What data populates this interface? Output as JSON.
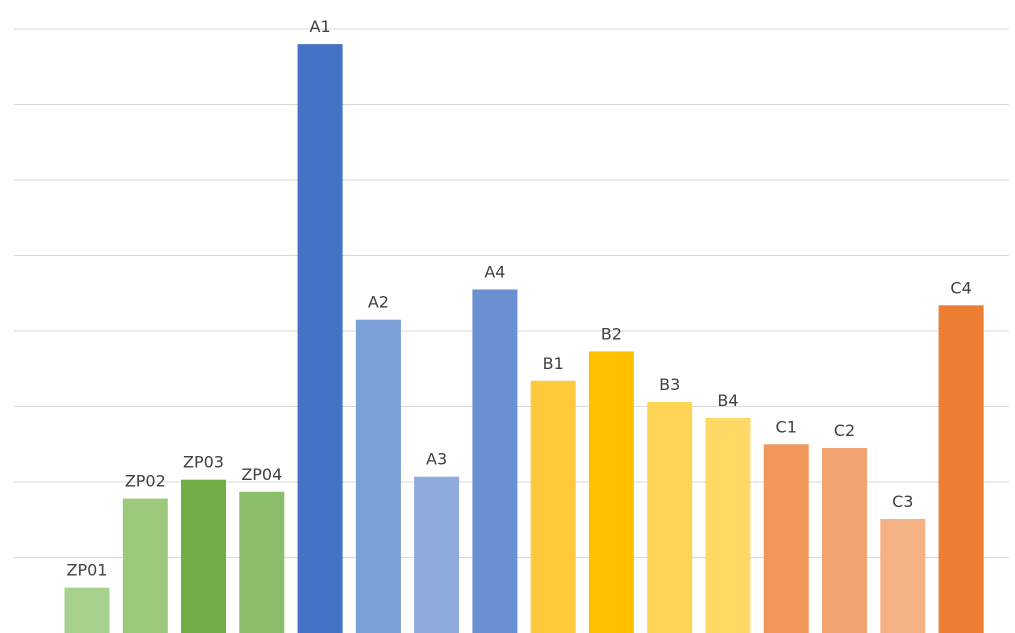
{
  "chart_data": {
    "type": "bar",
    "categories": [
      "ZP01",
      "ZP02",
      "ZP03",
      "ZP04",
      "A1",
      "A2",
      "A3",
      "A4",
      "B1",
      "B2",
      "B3",
      "B4",
      "C1",
      "C2",
      "C3",
      "C4"
    ],
    "values": [
      0.6,
      1.78,
      2.03,
      1.87,
      7.8,
      4.15,
      2.07,
      4.55,
      3.34,
      3.73,
      3.06,
      2.85,
      2.5,
      2.45,
      1.51,
      4.34
    ],
    "colors": [
      "#a9d18e",
      "#9dc97d",
      "#70ad47",
      "#8cbd6b",
      "#4472c4",
      "#7b9fd9",
      "#8fabdd",
      "#6a8fd2",
      "#ffc93c",
      "#ffc000",
      "#ffd454",
      "#ffd966",
      "#f0975a",
      "#f2a470",
      "#f4b183",
      "#ed7d31"
    ],
    "title": "",
    "xlabel": "",
    "ylabel": "",
    "ylim": [
      0,
      8
    ],
    "grid": true,
    "legend": "none",
    "axis_tick_labels": false
  }
}
